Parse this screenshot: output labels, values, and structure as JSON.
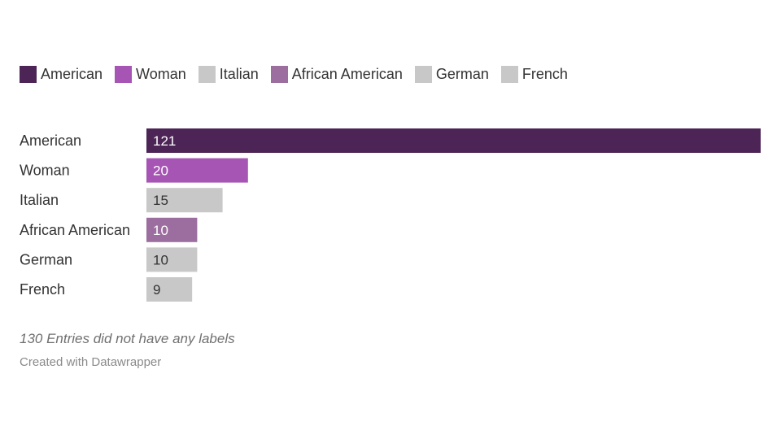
{
  "chart_data": {
    "type": "bar",
    "orientation": "horizontal",
    "categories": [
      "American",
      "Woman",
      "Italian",
      "African American",
      "German",
      "French"
    ],
    "values": [
      121,
      20,
      15,
      10,
      10,
      9
    ],
    "colors": [
      "#4d2456",
      "#a655b4",
      "#c8c8c8",
      "#9b6e9f",
      "#c8c8c8",
      "#c8c8c8"
    ],
    "value_label_colors": [
      "#ffffff",
      "#ffffff",
      "#333333",
      "#ffffff",
      "#333333",
      "#333333"
    ],
    "legend": [
      {
        "label": "American",
        "color": "#4d2456"
      },
      {
        "label": "Woman",
        "color": "#a655b4"
      },
      {
        "label": "Italian",
        "color": "#c8c8c8"
      },
      {
        "label": "African American",
        "color": "#9b6e9f"
      },
      {
        "label": "German",
        "color": "#c8c8c8"
      },
      {
        "label": "French",
        "color": "#c8c8c8"
      }
    ],
    "legend_position": "top-left",
    "xlim": [
      0,
      121
    ],
    "grid": false,
    "title": "",
    "xlabel": "",
    "ylabel": ""
  },
  "notes": {
    "footnote": "130 Entries did not have any labels",
    "credit": "Created with Datawrapper"
  }
}
